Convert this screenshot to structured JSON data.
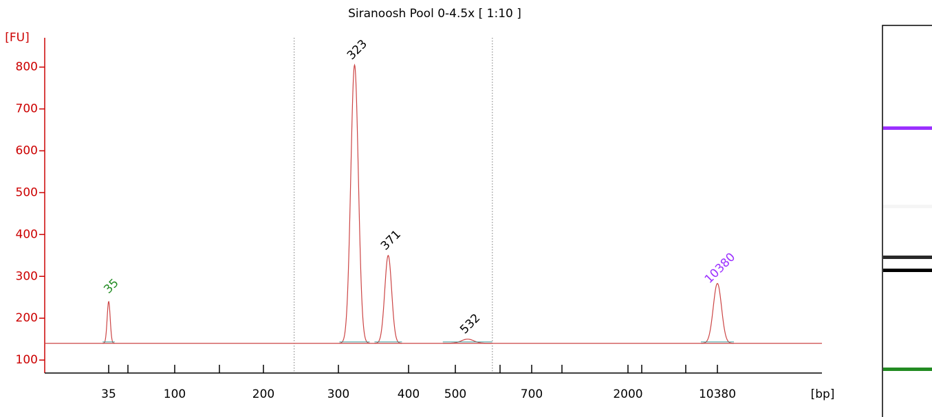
{
  "chart_data": {
    "type": "electropherogram",
    "title": "Siranoosh Pool 0-4.5x  [ 1:10 ]",
    "y_label": "[FU]",
    "x_label": "[bp]",
    "ylim": [
      69,
      870
    ],
    "yticks": [
      100,
      200,
      300,
      400,
      500,
      600,
      700,
      800
    ],
    "xticks": [
      35,
      null,
      100,
      null,
      200,
      300,
      400,
      500,
      null,
      700,
      null,
      2000,
      null,
      null,
      10380
    ],
    "baseline": 140,
    "region_bounds": [
      241,
      597
    ],
    "trace_color": "#cc4444",
    "axis_color": "#cc0000",
    "peaks": {
      "x": [
        35,
        323,
        371,
        532,
        10380
      ],
      "values": [
        240,
        805,
        350,
        150,
        283
      ],
      "label_colors": [
        "#228b22",
        "#000000",
        "#000000",
        "#000000",
        "#9b30ff"
      ]
    }
  }
}
